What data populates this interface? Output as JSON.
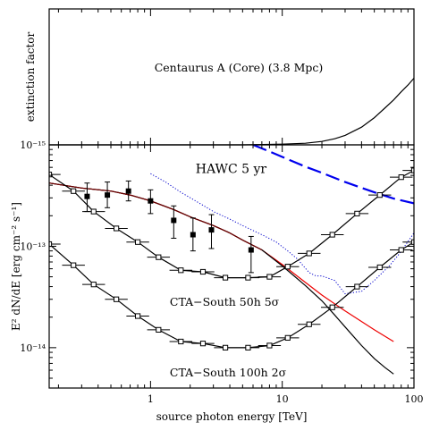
{
  "chart_data": [
    {
      "type": "line",
      "ylabel": "extinction factor",
      "annotation": "Centaurus A (Core) (3.8 Mpc)",
      "ytick_label": "10⁻¹⁵",
      "xscale": "log",
      "xlim": [
        0.17,
        100
      ],
      "ylim": [
        0,
        1
      ],
      "series": [
        {
          "color": "#000000",
          "x": [
            0.17,
            5,
            10,
            15,
            20,
            25,
            30,
            40,
            50,
            60,
            70,
            80,
            90,
            100
          ],
          "y": [
            0.0,
            0.0,
            0.005,
            0.012,
            0.025,
            0.045,
            0.07,
            0.13,
            0.2,
            0.27,
            0.33,
            0.39,
            0.44,
            0.49
          ]
        }
      ]
    },
    {
      "type": "line",
      "xlabel": "source photon energy [TeV]",
      "ylabel": "E² dN/dE  [erg cm⁻² s⁻¹]",
      "xscale": "log",
      "yscale": "log",
      "xlim": [
        0.17,
        100
      ],
      "ylim": [
        4e-15,
        1e-12
      ],
      "x_ticks": [
        {
          "value": 1,
          "label": "1"
        },
        {
          "value": 10,
          "label": "10"
        },
        {
          "value": 100,
          "label": "100"
        }
      ],
      "y_ticks": [
        {
          "value": 1e-14,
          "label": "10⁻¹⁴"
        },
        {
          "value": 1e-13,
          "label": "10⁻¹³"
        }
      ],
      "annotations": [
        {
          "text": "HAWC 5 yr",
          "color": "#0000ee",
          "x": 2.2,
          "y": 5.3e-13
        },
        {
          "text": "CTA−South 50h 5σ",
          "color": "#000000",
          "x": 1.4,
          "y": 2.6e-14
        },
        {
          "text": "CTA−South 100h 2σ",
          "color": "#000000",
          "x": 1.4,
          "y": 5.2e-15
        }
      ],
      "series": [
        {
          "name": "HAWC 5 yr",
          "color": "#0000ee",
          "style": "dashed",
          "x": [
            6,
            8,
            10,
            15,
            20,
            30,
            50,
            70,
            100
          ],
          "y": [
            1e-12,
            8.6e-13,
            7.6e-13,
            6.1e-13,
            5.3e-13,
            4.3e-13,
            3.4e-13,
            2.95e-13,
            2.65e-13
          ]
        },
        {
          "color": "#0000cc",
          "style": "dotted",
          "x": [
            1,
            1.3,
            1.7,
            2.2,
            3,
            4,
            5,
            7,
            9,
            11,
            13,
            16,
            18,
            20,
            25,
            30,
            40,
            50,
            65,
            75,
            85,
            100
          ],
          "y": [
            5.2e-13,
            4.3e-13,
            3.4e-13,
            2.8e-13,
            2.2e-13,
            1.85e-13,
            1.6e-13,
            1.3e-13,
            1.1e-13,
            9e-14,
            7.5e-14,
            5.5e-14,
            5.1e-14,
            5.1e-14,
            4.6e-14,
            3.4e-14,
            3.6e-14,
            4.6e-14,
            6.4e-14,
            8e-14,
            1e-13,
            1.35e-13
          ]
        },
        {
          "color": "#ee0000",
          "style": "solid",
          "x": [
            0.17,
            0.3,
            0.5,
            0.7,
            1,
            1.5,
            2,
            3,
            4,
            5,
            7,
            10,
            15,
            20,
            30,
            50,
            70
          ],
          "y": [
            4.2e-13,
            3.75e-13,
            3.5e-13,
            3.2e-13,
            2.8e-13,
            2.3e-13,
            1.95e-13,
            1.6e-13,
            1.35e-13,
            1.15e-13,
            9.2e-14,
            6.6e-14,
            4.4e-14,
            3.3e-14,
            2.3e-14,
            1.5e-14,
            1.15e-14
          ]
        },
        {
          "color": "#000000",
          "style": "solid",
          "x": [
            0.17,
            0.3,
            0.5,
            0.7,
            1,
            1.5,
            2,
            3,
            4,
            5,
            7,
            10,
            15,
            20,
            25,
            30,
            40,
            50,
            60,
            70
          ],
          "y": [
            4.2e-13,
            3.75e-13,
            3.5e-13,
            3.2e-13,
            2.8e-13,
            2.3e-13,
            1.95e-13,
            1.6e-13,
            1.35e-13,
            1.15e-13,
            9.2e-14,
            6.4e-14,
            4.1e-14,
            2.9e-14,
            2.1e-14,
            1.6e-14,
            1.05e-14,
            7.8e-15,
            6.4e-15,
            5.5e-15
          ]
        },
        {
          "color": "#6b0000",
          "style": "solid",
          "x": [
            0.17,
            0.3,
            0.5,
            0.7,
            1,
            1.5,
            2,
            3,
            4,
            5,
            7
          ],
          "y": [
            4.2e-13,
            3.75e-13,
            3.5e-13,
            3.2e-13,
            2.8e-13,
            2.3e-13,
            1.95e-13,
            1.6e-13,
            1.35e-13,
            1.15e-13,
            9.2e-14
          ]
        },
        {
          "name": "CTA−South 50h 5σ",
          "color": "#000000",
          "style": "solid",
          "markers": "open-square-xerr",
          "x": [
            0.17,
            0.26,
            0.37,
            0.55,
            0.8,
            1.15,
            1.7,
            2.5,
            3.7,
            5.5,
            8,
            11,
            16,
            24,
            37,
            55,
            80,
            100
          ],
          "y": [
            5.1e-13,
            3.5e-13,
            2.2e-13,
            1.5e-13,
            1.1e-13,
            7.8e-14,
            5.8e-14,
            5.6e-14,
            4.9e-14,
            4.9e-14,
            5e-14,
            6.3e-14,
            8.5e-14,
            1.3e-13,
            2.1e-13,
            3.2e-13,
            4.8e-13,
            5.6e-13
          ]
        },
        {
          "name": "CTA−South 100h 2σ",
          "color": "#000000",
          "style": "solid",
          "markers": "open-square-xerr",
          "x": [
            0.17,
            0.26,
            0.37,
            0.55,
            0.8,
            1.15,
            1.7,
            2.5,
            3.7,
            5.5,
            8,
            11,
            16,
            24,
            37,
            55,
            80,
            100
          ],
          "y": [
            1.05e-13,
            6.5e-14,
            4.2e-14,
            3e-14,
            2.05e-14,
            1.5e-14,
            1.15e-14,
            1.1e-14,
            1e-14,
            1e-14,
            1.05e-14,
            1.25e-14,
            1.7e-14,
            2.5e-14,
            4e-14,
            6.2e-14,
            9.2e-14,
            1.1e-13
          ]
        },
        {
          "color": "#000000",
          "style": "none",
          "markers": "filled-square-yerr",
          "x": [
            0.33,
            0.47,
            0.68,
            1,
            1.5,
            2.1,
            2.9,
            5.8
          ],
          "y": [
            3.1e-13,
            3.2e-13,
            3.5e-13,
            2.8e-13,
            1.8e-13,
            1.3e-13,
            1.45e-13,
            9.2e-14
          ],
          "yerr_low": [
            2.2e-13,
            2.4e-13,
            2.8e-13,
            2.1e-13,
            1.2e-13,
            9e-14,
            9.5e-14,
            5.5e-14
          ],
          "yerr_high": [
            4.2e-13,
            4.3e-13,
            4.4e-13,
            3.6e-13,
            2.5e-13,
            1.9e-13,
            2.05e-13,
            1.25e-13
          ]
        }
      ]
    }
  ]
}
